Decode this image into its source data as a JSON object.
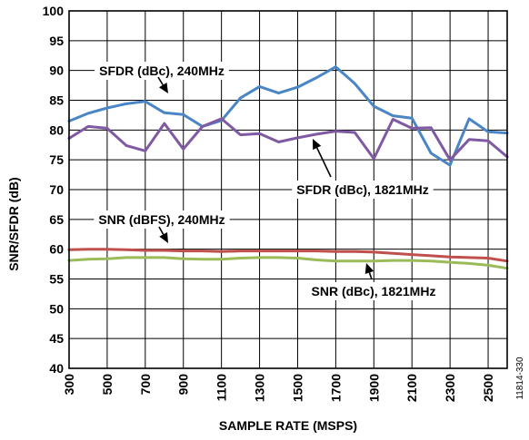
{
  "chart_data": {
    "type": "line",
    "title": "",
    "xlabel": "SAMPLE RATE (MSPS)",
    "ylabel": "SNR/SFDR (dB)",
    "xlim": [
      300,
      2600
    ],
    "ylim": [
      40,
      100
    ],
    "x_ticks": [
      300,
      500,
      700,
      900,
      1100,
      1300,
      1500,
      1700,
      1900,
      2100,
      2300,
      2500
    ],
    "x_tick_labels": [
      "300",
      "500",
      "700",
      "900",
      "1100",
      "1300",
      "1500",
      "1700",
      "1900",
      "2100",
      "2300",
      "2500"
    ],
    "y_ticks": [
      40,
      45,
      50,
      55,
      60,
      65,
      70,
      75,
      80,
      85,
      90,
      95,
      100
    ],
    "y_tick_labels": [
      "40",
      "45",
      "50",
      "55",
      "60",
      "65",
      "70",
      "75",
      "80",
      "85",
      "90",
      "95",
      "100"
    ],
    "grid": true,
    "x": [
      300,
      400,
      500,
      600,
      700,
      800,
      900,
      1000,
      1100,
      1200,
      1300,
      1400,
      1500,
      1600,
      1700,
      1800,
      1900,
      2000,
      2100,
      2200,
      2300,
      2400,
      2500,
      2600
    ],
    "series": [
      {
        "key": "sfdr_240",
        "color": "#4a86c5",
        "values": [
          81.5,
          82.8,
          83.7,
          84.4,
          84.8,
          82.9,
          82.6,
          80.6,
          81.6,
          85.4,
          87.3,
          86.2,
          87.2,
          88.8,
          90.6,
          87.8,
          84.0,
          82.4,
          82.0,
          76.1,
          74.1,
          81.9,
          79.7,
          79.5
        ]
      },
      {
        "key": "sfdr_1821",
        "color": "#7f5aa2",
        "values": [
          78.6,
          80.6,
          80.3,
          77.4,
          76.5,
          81.1,
          76.8,
          80.6,
          81.9,
          79.2,
          79.4,
          78.0,
          78.7,
          79.3,
          79.8,
          79.6,
          75.2,
          81.8,
          80.3,
          80.4,
          75.0,
          78.4,
          78.2,
          75.5
        ]
      },
      {
        "key": "snr_240",
        "color": "#c0504d",
        "values": [
          59.9,
          60.0,
          60.0,
          59.9,
          59.8,
          59.8,
          59.7,
          59.7,
          59.6,
          59.7,
          59.7,
          59.7,
          59.7,
          59.7,
          59.6,
          59.6,
          59.5,
          59.3,
          59.1,
          58.9,
          58.7,
          58.6,
          58.5,
          58.0
        ]
      },
      {
        "key": "snr_1821",
        "color": "#9bbb59",
        "values": [
          58.1,
          58.3,
          58.4,
          58.6,
          58.6,
          58.6,
          58.4,
          58.3,
          58.3,
          58.5,
          58.6,
          58.6,
          58.5,
          58.2,
          58.0,
          58.0,
          58.0,
          58.1,
          58.1,
          58.0,
          57.8,
          57.6,
          57.3,
          56.8
        ]
      }
    ],
    "annotations": [
      {
        "key": "sfdr_240",
        "text": "SFDR (dBc), 240MHz"
      },
      {
        "key": "sfdr_1821",
        "text": "SFDR (dBc), 1821MHz"
      },
      {
        "key": "snr_240",
        "text": "SNR (dBFS), 240MHz"
      },
      {
        "key": "snr_1821",
        "text": "SNR (dBc), 1821MHz"
      }
    ]
  },
  "figure_id": "11814-330"
}
